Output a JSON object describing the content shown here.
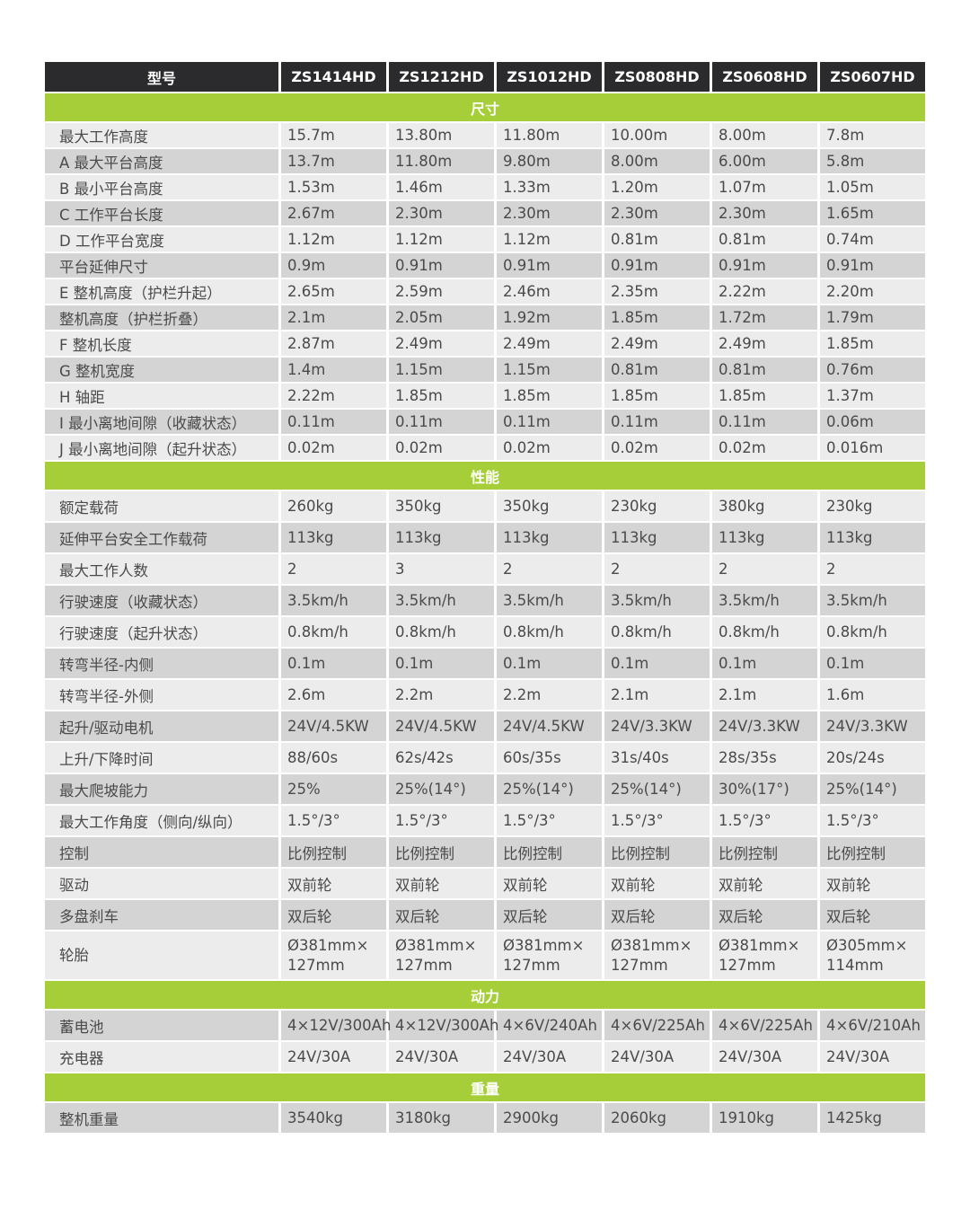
{
  "header": {
    "label": "型号",
    "models": [
      "ZS1414HD",
      "ZS1212HD",
      "ZS1012HD",
      "ZS0808HD",
      "ZS0608HD",
      "ZS0607HD"
    ]
  },
  "colors": {
    "header_bg": "#2b2b2d",
    "section_bg": "#a6ce39",
    "row_light": "#ececec",
    "row_gray": "#d4d4d4"
  },
  "sections": [
    {
      "title": "尺寸",
      "rows": [
        {
          "label": "最大工作高度",
          "values": [
            "15.7m",
            "13.80m",
            "11.80m",
            "10.00m",
            "8.00m",
            "7.8m"
          ]
        },
        {
          "label": "A 最大平台高度",
          "values": [
            "13.7m",
            "11.80m",
            "9.80m",
            "8.00m",
            "6.00m",
            "5.8m"
          ]
        },
        {
          "label": "B 最小平台高度",
          "values": [
            "1.53m",
            "1.46m",
            "1.33m",
            "1.20m",
            "1.07m",
            "1.05m"
          ]
        },
        {
          "label": "C 工作平台长度",
          "values": [
            "2.67m",
            "2.30m",
            "2.30m",
            "2.30m",
            "2.30m",
            "1.65m"
          ]
        },
        {
          "label": "D 工作平台宽度",
          "values": [
            "1.12m",
            "1.12m",
            "1.12m",
            "0.81m",
            "0.81m",
            "0.74m"
          ]
        },
        {
          "label": "平台延伸尺寸",
          "values": [
            "0.9m",
            "0.91m",
            "0.91m",
            "0.91m",
            "0.91m",
            "0.91m"
          ]
        },
        {
          "label": "E 整机高度（护栏升起）",
          "values": [
            "2.65m",
            "2.59m",
            "2.46m",
            "2.35m",
            "2.22m",
            "2.20m"
          ]
        },
        {
          "label": "整机高度（护栏折叠）",
          "values": [
            "2.1m",
            "2.05m",
            "1.92m",
            "1.85m",
            "1.72m",
            "1.79m"
          ]
        },
        {
          "label": "F 整机长度",
          "values": [
            "2.87m",
            "2.49m",
            "2.49m",
            "2.49m",
            "2.49m",
            "1.85m"
          ]
        },
        {
          "label": "G 整机宽度",
          "values": [
            "1.4m",
            "1.15m",
            "1.15m",
            "0.81m",
            "0.81m",
            "0.76m"
          ]
        },
        {
          "label": "H 轴距",
          "values": [
            "2.22m",
            "1.85m",
            "1.85m",
            "1.85m",
            "1.85m",
            "1.37m"
          ]
        },
        {
          "label": "I 最小离地间隙（收藏状态）",
          "values": [
            "0.11m",
            "0.11m",
            "0.11m",
            "0.11m",
            "0.11m",
            "0.06m"
          ]
        },
        {
          "label": "J 最小离地间隙（起升状态）",
          "values": [
            "0.02m",
            "0.02m",
            "0.02m",
            "0.02m",
            "0.02m",
            "0.016m"
          ]
        }
      ]
    },
    {
      "title": "性能",
      "rows": [
        {
          "label": "额定载荷",
          "values": [
            "260kg",
            "350kg",
            "350kg",
            "230kg",
            "380kg",
            "230kg"
          ]
        },
        {
          "label": "延伸平台安全工作载荷",
          "values": [
            "113kg",
            "113kg",
            "113kg",
            "113kg",
            "113kg",
            "113kg"
          ]
        },
        {
          "label": "最大工作人数",
          "values": [
            "2",
            "3",
            "2",
            "2",
            "2",
            "2"
          ]
        },
        {
          "label": "行驶速度（收藏状态）",
          "values": [
            "3.5km/h",
            "3.5km/h",
            "3.5km/h",
            "3.5km/h",
            "3.5km/h",
            "3.5km/h"
          ]
        },
        {
          "label": "行驶速度（起升状态）",
          "values": [
            "0.8km/h",
            "0.8km/h",
            "0.8km/h",
            "0.8km/h",
            "0.8km/h",
            "0.8km/h"
          ]
        },
        {
          "label": "转弯半径-内侧",
          "values": [
            "0.1m",
            "0.1m",
            "0.1m",
            "0.1m",
            "0.1m",
            "0.1m"
          ]
        },
        {
          "label": "转弯半径-外侧",
          "values": [
            "2.6m",
            "2.2m",
            "2.2m",
            "2.1m",
            "2.1m",
            "1.6m"
          ]
        },
        {
          "label": "起升/驱动电机",
          "values": [
            "24V/4.5KW",
            "24V/4.5KW",
            "24V/4.5KW",
            "24V/3.3KW",
            "24V/3.3KW",
            "24V/3.3KW"
          ]
        },
        {
          "label": "上升/下降时间",
          "values": [
            "88/60s",
            "62s/42s",
            "60s/35s",
            "31s/40s",
            "28s/35s",
            "20s/24s"
          ]
        },
        {
          "label": "最大爬坡能力",
          "values": [
            "25%",
            "25%(14°)",
            "25%(14°)",
            "25%(14°)",
            "30%(17°)",
            "25%(14°)"
          ]
        },
        {
          "label": "最大工作角度（侧向/纵向）",
          "values": [
            "1.5°/3°",
            "1.5°/3°",
            "1.5°/3°",
            "1.5°/3°",
            "1.5°/3°",
            "1.5°/3°"
          ]
        },
        {
          "label": "控制",
          "values": [
            "比例控制",
            "比例控制",
            "比例控制",
            "比例控制",
            "比例控制",
            "比例控制"
          ]
        },
        {
          "label": "驱动",
          "values": [
            "双前轮",
            "双前轮",
            "双前轮",
            "双前轮",
            "双前轮",
            "双前轮"
          ]
        },
        {
          "label": "多盘刹车",
          "values": [
            "双后轮",
            "双后轮",
            "双后轮",
            "双后轮",
            "双后轮",
            "双后轮"
          ]
        },
        {
          "label": "轮胎",
          "values": [
            "Ø381mm×\n127mm",
            "Ø381mm×\n127mm",
            "Ø381mm×\n127mm",
            "Ø381mm×\n127mm",
            "Ø381mm×\n127mm",
            "Ø305mm×\n114mm"
          ]
        }
      ]
    },
    {
      "title": "动力",
      "rows": [
        {
          "label": "蓄电池",
          "values": [
            "4×12V/300Ah",
            "4×12V/300Ah",
            "4×6V/240Ah",
            "4×6V/225Ah",
            "4×6V/225Ah",
            "4×6V/210Ah"
          ]
        },
        {
          "label": "充电器",
          "values": [
            "24V/30A",
            "24V/30A",
            "24V/30A",
            "24V/30A",
            "24V/30A",
            "24V/30A"
          ]
        }
      ]
    },
    {
      "title": "重量",
      "rows": [
        {
          "label": "整机重量",
          "values": [
            "3540kg",
            "3180kg",
            "2900kg",
            "2060kg",
            "1910kg",
            "1425kg"
          ]
        }
      ]
    }
  ]
}
